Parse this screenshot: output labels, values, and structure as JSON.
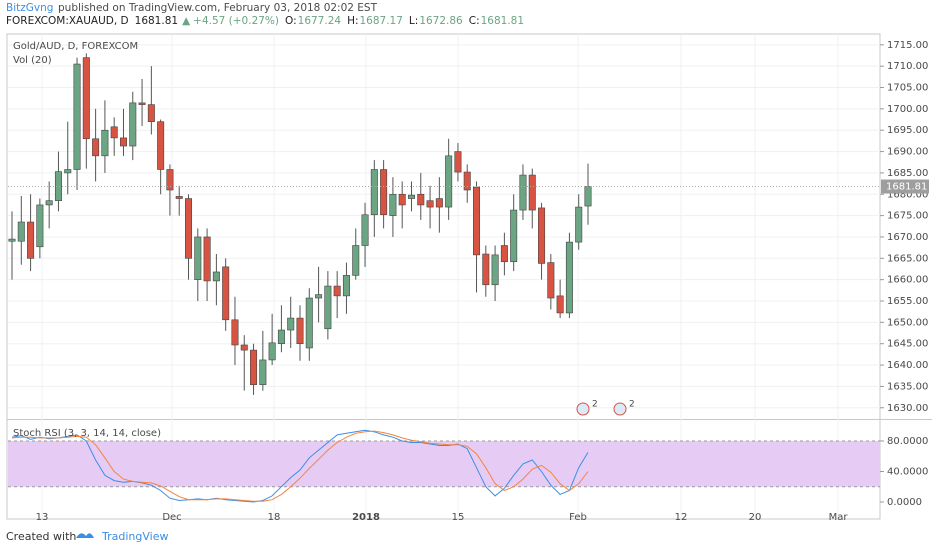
{
  "header": {
    "author": "BitzGvng",
    "published": "published on TradingView.com, February 03, 2018 02:02 EST",
    "symbol": "FOREXCOM:XAUAUD, D",
    "last": "1681.81",
    "arrow": "▲",
    "change": "+4.57 (+0.27%)",
    "ohlc": [
      {
        "label": "O:",
        "value": "1677.24"
      },
      {
        "label": "H:",
        "value": "1687.17"
      },
      {
        "label": "L:",
        "value": "1672.86"
      },
      {
        "label": "C:",
        "value": "1681.81"
      }
    ]
  },
  "chart_data": [
    {
      "type": "candlestick",
      "title": "Gold/AUD, D, FOREXCOM",
      "subtitle": "Vol (20)",
      "up_color": "#6ba583",
      "down_color": "#d75442",
      "open": [
        1669,
        1669,
        1673.5,
        1667.7,
        1677.5,
        1678.5,
        1685,
        1685.8,
        1712,
        1693,
        1689,
        1695.8,
        1693.2,
        1691.3,
        1701.4,
        1701,
        1697,
        1685.8,
        1679.5,
        1679,
        1660,
        1670,
        1659.7,
        1663,
        1650.6,
        1644.7,
        1643.5,
        1635.4,
        1641.2,
        1645,
        1648.2,
        1651,
        1644,
        1655.7,
        1648.5,
        1658.5,
        1656.2,
        1661,
        1668,
        1675.2,
        1685.8,
        1675,
        1680,
        1679,
        1680,
        1678.5,
        1679,
        1677,
        1690,
        1685.2,
        1681.7,
        1666,
        1658.8,
        1668,
        1664.2,
        1676.3,
        1684.5,
        1676.8,
        1664,
        1656.2,
        1652.2,
        1668.8,
        1677.24
      ],
      "high": [
        1676,
        1679.6,
        1680,
        1679,
        1683,
        1690,
        1697,
        1712,
        1713,
        1700,
        1702,
        1698,
        1700,
        1704,
        1707,
        1710,
        1697.5,
        1687,
        1682,
        1680,
        1672,
        1672,
        1666,
        1665,
        1656,
        1647,
        1645,
        1648,
        1652,
        1654,
        1656,
        1654,
        1658,
        1663,
        1662,
        1662,
        1664,
        1672,
        1678,
        1688,
        1688,
        1684,
        1683,
        1683,
        1685,
        1682,
        1684,
        1693,
        1692,
        1687,
        1683,
        1668,
        1668,
        1671,
        1680,
        1687,
        1686,
        1678,
        1666,
        1660,
        1671,
        1680,
        1687.17
      ],
      "low": [
        1660,
        1663.5,
        1662,
        1665,
        1672,
        1676,
        1680,
        1681,
        1686,
        1683,
        1685,
        1689,
        1689,
        1688,
        1696,
        1694,
        1680,
        1675,
        1675,
        1660,
        1655,
        1655,
        1654,
        1648,
        1640,
        1634,
        1633,
        1634,
        1640,
        1643,
        1644,
        1641,
        1641,
        1650,
        1646,
        1651,
        1652,
        1660,
        1663,
        1670,
        1672,
        1670,
        1672,
        1676,
        1674,
        1672,
        1671,
        1674,
        1683,
        1678,
        1657,
        1656,
        1655,
        1661,
        1662,
        1674,
        1672,
        1660,
        1653,
        1651,
        1651,
        1667,
        1672.86
      ],
      "close": [
        1669.5,
        1673.5,
        1665,
        1677.5,
        1678.5,
        1685.3,
        1685.8,
        1710.5,
        1693,
        1689,
        1695,
        1693.2,
        1691.3,
        1701.4,
        1701,
        1697,
        1685.8,
        1681,
        1679,
        1665,
        1670,
        1659.7,
        1661.8,
        1650.6,
        1644.7,
        1643.5,
        1635.4,
        1641.2,
        1645.2,
        1648.2,
        1651,
        1645,
        1655.7,
        1656.5,
        1658.5,
        1656.2,
        1661,
        1668,
        1675.2,
        1685.8,
        1675.2,
        1680,
        1677.5,
        1679.8,
        1677.5,
        1677,
        1677,
        1689,
        1685.2,
        1681,
        1665.8,
        1658.8,
        1665.8,
        1664.2,
        1676.3,
        1684.5,
        1676.3,
        1663.8,
        1655.7,
        1652.2,
        1668.8,
        1677,
        1681.81
      ],
      "last_label": "1681.81",
      "ylim": [
        1627.6,
        1717.3
      ],
      "yticks": [
        {
          "value": 1630,
          "label": "1630.00"
        },
        {
          "value": 1635,
          "label": "1635.00"
        },
        {
          "value": 1640,
          "label": "1640.00"
        },
        {
          "value": 1645,
          "label": "1645.00"
        },
        {
          "value": 1650,
          "label": "1650.00"
        },
        {
          "value": 1655,
          "label": "1655.00"
        },
        {
          "value": 1660,
          "label": "1660.00"
        },
        {
          "value": 1665,
          "label": "1665.00"
        },
        {
          "value": 1670,
          "label": "1670.00"
        },
        {
          "value": 1675,
          "label": "1675.00"
        },
        {
          "value": 1680,
          "label": "1680.00"
        },
        {
          "value": 1685,
          "label": "1685.00"
        },
        {
          "value": 1690,
          "label": "1690.00"
        },
        {
          "value": 1695,
          "label": "1695.00"
        },
        {
          "value": 1700,
          "label": "1700.00"
        },
        {
          "value": 1705,
          "label": "1705.00"
        },
        {
          "value": 1710,
          "label": "1710.00"
        },
        {
          "value": 1715,
          "label": "1715.00"
        }
      ],
      "xlabels": [
        "13",
        "Dec",
        "18",
        "2018",
        "15",
        "Feb",
        "12",
        "20",
        "Mar"
      ],
      "events": [
        "2",
        "2"
      ],
      "grid": true
    },
    {
      "type": "line",
      "title": "Stoch RSI (3, 3, 14, 14, close)",
      "series": [
        {
          "color": "#3c8ee5",
          "values": [
            85,
            87,
            82,
            85,
            83,
            84,
            86,
            88,
            80,
            55,
            35,
            28,
            26,
            27,
            25,
            22,
            15,
            5,
            2,
            3,
            4,
            3,
            5,
            3,
            2,
            1,
            0,
            2,
            8,
            20,
            32,
            42,
            58,
            68,
            78,
            88,
            90,
            92,
            94,
            92,
            88,
            85,
            80,
            78,
            78,
            76,
            74,
            74,
            76,
            70,
            45,
            20,
            8,
            18,
            35,
            50,
            55,
            40,
            22,
            10,
            15,
            45,
            65
          ]
        },
        {
          "color": "#f5843e",
          "values": [
            84,
            85,
            85,
            84,
            84,
            84,
            85,
            86,
            85,
            75,
            58,
            40,
            30,
            27,
            26,
            25,
            21,
            14,
            7,
            3,
            3,
            3,
            4,
            4,
            3,
            2,
            1,
            1,
            3,
            10,
            20,
            31,
            44,
            56,
            68,
            78,
            85,
            90,
            92,
            93,
            91,
            88,
            84,
            81,
            79,
            77,
            76,
            75,
            75,
            73,
            63,
            45,
            24,
            15,
            20,
            30,
            43,
            48,
            39,
            24,
            15,
            24,
            40
          ]
        }
      ],
      "band": [
        20,
        80
      ],
      "band_color": "#e6ccf5",
      "y2lim": [
        -21,
        107.5
      ],
      "y2ticks": [
        {
          "value": 80,
          "label": "80.0000"
        },
        {
          "value": 40,
          "label": "40.0000"
        },
        {
          "value": 0,
          "label": "0.0000"
        }
      ]
    }
  ],
  "footer": {
    "created": "Created with",
    "brand": "TradingView"
  }
}
